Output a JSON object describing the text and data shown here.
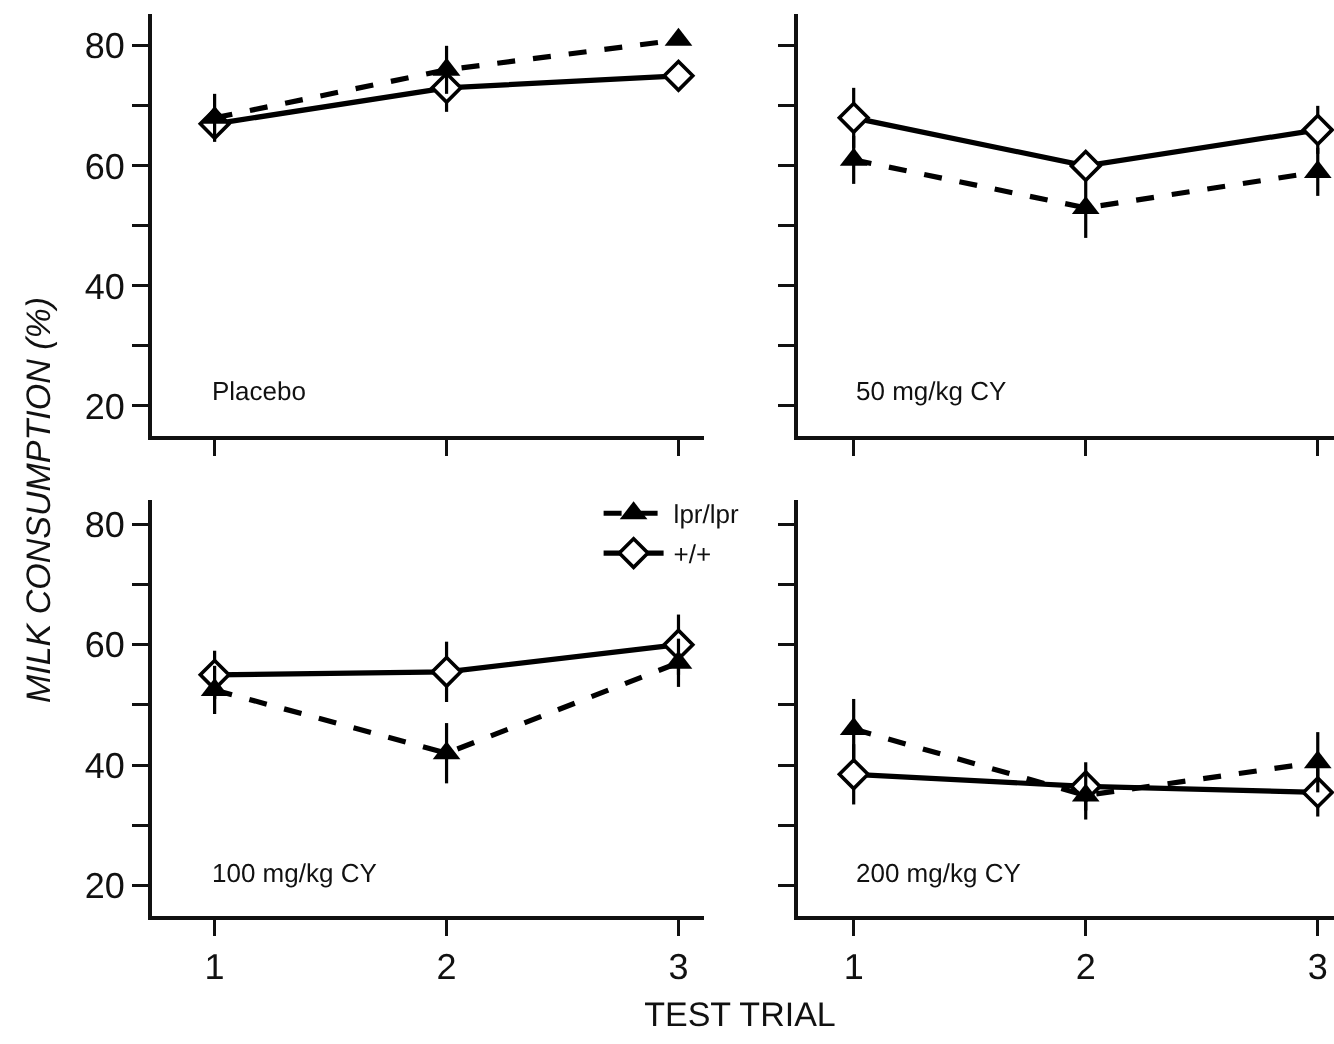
{
  "chart_data": [
    {
      "type": "line",
      "ylabel": "MILK CONSUMPTION (%)",
      "annotations": [
        "Placebo"
      ],
      "x": [
        1,
        2,
        3
      ],
      "xlim": [
        0.73,
        3.11
      ],
      "xticks": [
        1,
        2,
        3
      ],
      "ylim": [
        15,
        85.3
      ],
      "yticks": [
        20,
        {
          "value": 30,
          "label": null
        },
        40,
        {
          "value": 50,
          "label": null
        },
        60,
        {
          "value": 70,
          "label": null
        },
        80
      ],
      "tick_labels": "y",
      "legend": false,
      "grid": false,
      "series": [
        {
          "color": "#000000",
          "marker": "triangle",
          "line_style": "dashed",
          "values": [
            68,
            76,
            81
          ],
          "errors": [
            4,
            4,
            null
          ]
        },
        {
          "color": "#000000",
          "marker": "diamond",
          "line_style": "solid",
          "values": [
            67,
            73,
            75
          ],
          "errors": [
            null,
            4,
            null
          ]
        }
      ]
    },
    {
      "type": "line",
      "annotations": [
        "50 mg/kg CY"
      ],
      "x": [
        1,
        2,
        3
      ],
      "xlim": [
        0.76,
        3.07
      ],
      "xticks": [
        1,
        2,
        3
      ],
      "ylim": [
        15,
        85.3
      ],
      "yticks": [
        {
          "value": 20,
          "label": null
        },
        {
          "value": 30,
          "label": null
        },
        {
          "value": 40,
          "label": null
        },
        {
          "value": 50,
          "label": null
        },
        {
          "value": 60,
          "label": null
        },
        {
          "value": 70,
          "label": null
        },
        {
          "value": 80,
          "label": null
        }
      ],
      "tick_labels": false,
      "legend": false,
      "grid": false,
      "series": [
        {
          "color": "#000000",
          "marker": "triangle",
          "line_style": "dashed",
          "values": [
            61,
            53,
            59
          ],
          "errors": [
            4,
            5,
            4
          ]
        },
        {
          "color": "#000000",
          "marker": "diamond",
          "line_style": "solid",
          "values": [
            68,
            60,
            66
          ],
          "errors": [
            5,
            null,
            4
          ]
        }
      ]
    },
    {
      "type": "line",
      "xlabel": "TEST TRIAL",
      "annotations": [
        "100 mg/kg CY"
      ],
      "x": [
        1,
        2,
        3
      ],
      "xlim": [
        0.73,
        3.11
      ],
      "xticks": [
        1,
        2,
        3
      ],
      "ylim": [
        15,
        84
      ],
      "yticks": [
        20,
        {
          "value": 30,
          "label": null
        },
        40,
        {
          "value": 50,
          "label": null
        },
        60,
        {
          "value": 70,
          "label": null
        },
        80
      ],
      "legend": "top right",
      "grid": false,
      "series": [
        {
          "name": "lpr/lpr",
          "color": "#000000",
          "marker": "triangle",
          "line_style": "dashed",
          "values": [
            52.5,
            42,
            57
          ],
          "errors": [
            4,
            5,
            4
          ]
        },
        {
          "name": "+/+",
          "color": "#000000",
          "marker": "diamond",
          "line_style": "solid",
          "values": [
            55,
            55.5,
            60
          ],
          "errors": [
            4,
            5,
            5
          ]
        }
      ]
    },
    {
      "type": "line",
      "annotations": [
        "200 mg/kg CY"
      ],
      "x": [
        1,
        2,
        3
      ],
      "xlim": [
        0.76,
        3.07
      ],
      "xticks": [
        1,
        2,
        3
      ],
      "ylim": [
        15,
        84
      ],
      "yticks": [
        {
          "value": 20,
          "label": null
        },
        {
          "value": 30,
          "label": null
        },
        {
          "value": 40,
          "label": null
        },
        {
          "value": 50,
          "label": null
        },
        {
          "value": 60,
          "label": null
        },
        {
          "value": 70,
          "label": null
        },
        {
          "value": 80,
          "label": null
        }
      ],
      "tick_labels": "x",
      "legend": false,
      "grid": false,
      "series": [
        {
          "color": "#000000",
          "marker": "triangle",
          "line_style": "dashed",
          "values": [
            46,
            35,
            40.5
          ],
          "errors": [
            5,
            4,
            5
          ]
        },
        {
          "color": "#000000",
          "marker": "diamond",
          "line_style": "solid",
          "values": [
            38.5,
            36.5,
            35.5
          ],
          "errors": [
            5,
            4,
            4
          ]
        }
      ]
    }
  ]
}
